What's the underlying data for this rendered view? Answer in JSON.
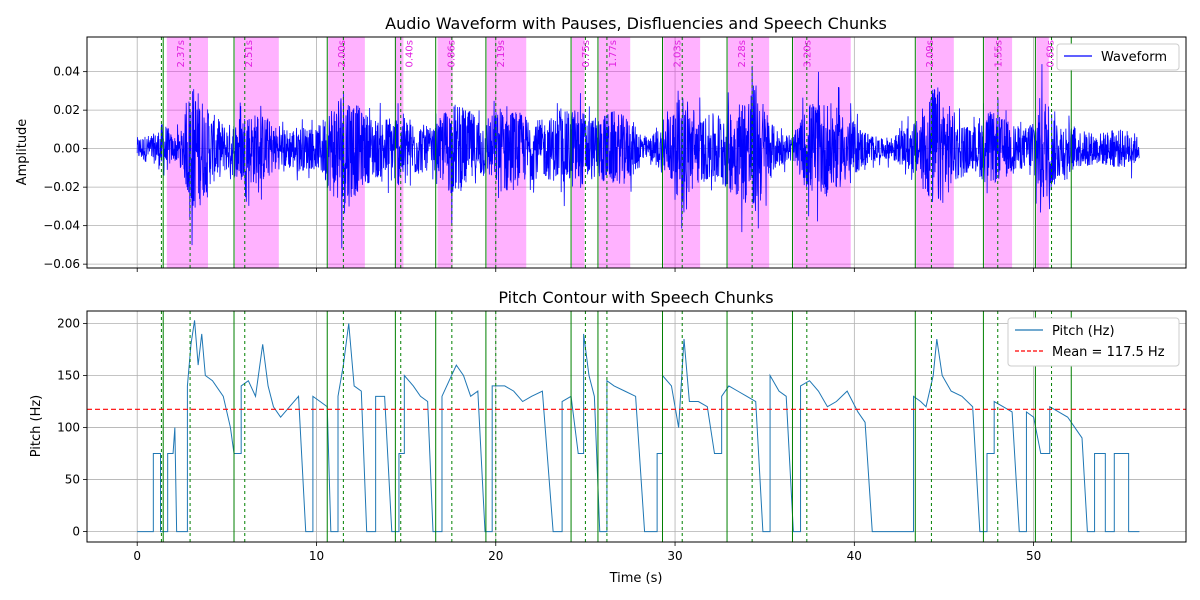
{
  "chart_data": [
    {
      "type": "line",
      "title": "Audio Waveform with Pauses, Disfluencies and Speech Chunks",
      "xlabel": "",
      "ylabel": "Amplitude",
      "xlim": [
        -2.8,
        58.5
      ],
      "ylim": [
        -0.062,
        0.058
      ],
      "yticks": [
        -0.06,
        -0.04,
        -0.02,
        0.0,
        0.02,
        0.04
      ],
      "ytick_labels": [
        "−0.06",
        "−0.04",
        "−0.02",
        "0.00",
        "0.02",
        "0.04"
      ],
      "xticks": [
        0,
        10,
        20,
        30,
        40,
        50
      ],
      "grid": true,
      "legend_position": "upper-right",
      "series": [
        {
          "name": "Waveform",
          "color": "#0000ff",
          "duration": 55.9,
          "envelope": [
            [
              0,
              0.006
            ],
            [
              1.0,
              0.008
            ],
            [
              1.5,
              0.015
            ],
            [
              2.0,
              0.006
            ],
            [
              2.5,
              0.01
            ],
            [
              3.0,
              0.035
            ],
            [
              3.5,
              0.03
            ],
            [
              4.0,
              0.02
            ],
            [
              5.0,
              0.012
            ],
            [
              6.0,
              0.02
            ],
            [
              7.0,
              0.018
            ],
            [
              8.0,
              0.01
            ],
            [
              9.0,
              0.012
            ],
            [
              10.0,
              0.01
            ],
            [
              11.5,
              0.035
            ],
            [
              12.5,
              0.02
            ],
            [
              13.5,
              0.015
            ],
            [
              14.5,
              0.02
            ],
            [
              15.5,
              0.015
            ],
            [
              16.5,
              0.01
            ],
            [
              17.5,
              0.025
            ],
            [
              18.5,
              0.02
            ],
            [
              19.5,
              0.015
            ],
            [
              20.5,
              0.025
            ],
            [
              21.5,
              0.018
            ],
            [
              22.5,
              0.015
            ],
            [
              23.5,
              0.018
            ],
            [
              24.5,
              0.022
            ],
            [
              25.5,
              0.016
            ],
            [
              26.5,
              0.02
            ],
            [
              27.5,
              0.016
            ],
            [
              28.5,
              0.005
            ],
            [
              29.5,
              0.015
            ],
            [
              30.5,
              0.03
            ],
            [
              31.5,
              0.016
            ],
            [
              32.5,
              0.02
            ],
            [
              33.5,
              0.025
            ],
            [
              34.5,
              0.035
            ],
            [
              35.5,
              0.012
            ],
            [
              36.5,
              0.005
            ],
            [
              37.5,
              0.025
            ],
            [
              38.5,
              0.025
            ],
            [
              39.5,
              0.018
            ],
            [
              40.5,
              0.01
            ],
            [
              41.5,
              0.005
            ],
            [
              42.5,
              0.008
            ],
            [
              43.5,
              0.015
            ],
            [
              44.5,
              0.035
            ],
            [
              45.5,
              0.02
            ],
            [
              46.5,
              0.01
            ],
            [
              47.5,
              0.02
            ],
            [
              48.5,
              0.015
            ],
            [
              49.5,
              0.01
            ],
            [
              50.5,
              0.03
            ],
            [
              51.5,
              0.015
            ],
            [
              52.5,
              0.01
            ],
            [
              53.5,
              0.008
            ],
            [
              54.5,
              0.01
            ],
            [
              55.5,
              0.01
            ],
            [
              55.9,
              0.005
            ]
          ]
        }
      ],
      "pause_spans": [
        {
          "start": 1.65,
          "end": 3.95,
          "label": "2.37s"
        },
        {
          "start": 5.45,
          "end": 7.9,
          "label": "2.51s"
        },
        {
          "start": 10.65,
          "end": 12.7,
          "label": "2.00s"
        },
        {
          "start": 14.4,
          "end": 14.85,
          "label": "0.40s"
        },
        {
          "start": 16.75,
          "end": 17.6,
          "label": "0.86s"
        },
        {
          "start": 19.5,
          "end": 21.7,
          "label": "2.19s"
        },
        {
          "start": 24.25,
          "end": 24.95,
          "label": "0.75s"
        },
        {
          "start": 25.75,
          "end": 27.5,
          "label": "1.77s"
        },
        {
          "start": 29.35,
          "end": 31.4,
          "label": "2.03s"
        },
        {
          "start": 32.95,
          "end": 35.25,
          "label": "2.28s"
        },
        {
          "start": 36.6,
          "end": 39.8,
          "label": "3.20s"
        },
        {
          "start": 43.45,
          "end": 45.55,
          "label": "2.09s"
        },
        {
          "start": 47.25,
          "end": 48.8,
          "label": "1.55s"
        },
        {
          "start": 50.15,
          "end": 50.85,
          "label": "0.69s"
        }
      ]
    },
    {
      "type": "line",
      "title": "Pitch Contour with Speech Chunks",
      "xlabel": "Time (s)",
      "ylabel": "Pitch (Hz)",
      "xlim": [
        -2.8,
        58.5
      ],
      "ylim": [
        -10,
        212
      ],
      "yticks": [
        0,
        50,
        100,
        150,
        200
      ],
      "xticks": [
        0,
        10,
        20,
        30,
        40,
        50
      ],
      "grid": true,
      "legend_position": "upper-right",
      "series": [
        {
          "name": "Pitch (Hz)",
          "color": "#1f77b4",
          "values": [
            [
              0,
              0
            ],
            [
              0.9,
              0
            ],
            [
              0.9,
              75
            ],
            [
              1.3,
              75
            ],
            [
              1.3,
              0
            ],
            [
              1.7,
              0
            ],
            [
              1.7,
              75
            ],
            [
              2.0,
              75
            ],
            [
              2.1,
              100
            ],
            [
              2.2,
              0
            ],
            [
              2.8,
              0
            ],
            [
              2.8,
              140
            ],
            [
              3.0,
              180
            ],
            [
              3.2,
              203
            ],
            [
              3.4,
              160
            ],
            [
              3.6,
              190
            ],
            [
              3.8,
              150
            ],
            [
              4.2,
              145
            ],
            [
              4.8,
              130
            ],
            [
              5.2,
              100
            ],
            [
              5.4,
              75
            ],
            [
              5.8,
              75
            ],
            [
              5.8,
              140
            ],
            [
              6.2,
              145
            ],
            [
              6.6,
              130
            ],
            [
              7.0,
              180
            ],
            [
              7.3,
              140
            ],
            [
              7.6,
              120
            ],
            [
              8.0,
              110
            ],
            [
              8.5,
              120
            ],
            [
              9.0,
              130
            ],
            [
              9.4,
              0
            ],
            [
              9.8,
              0
            ],
            [
              9.8,
              130
            ],
            [
              10.2,
              125
            ],
            [
              10.6,
              120
            ],
            [
              10.8,
              0
            ],
            [
              11.2,
              0
            ],
            [
              11.2,
              130
            ],
            [
              11.5,
              160
            ],
            [
              11.8,
              200
            ],
            [
              12.1,
              140
            ],
            [
              12.5,
              135
            ],
            [
              12.8,
              0
            ],
            [
              13.3,
              0
            ],
            [
              13.3,
              130
            ],
            [
              13.8,
              130
            ],
            [
              14.2,
              0
            ],
            [
              14.6,
              0
            ],
            [
              14.6,
              75
            ],
            [
              14.9,
              75
            ],
            [
              14.9,
              150
            ],
            [
              15.4,
              140
            ],
            [
              15.8,
              130
            ],
            [
              16.2,
              125
            ],
            [
              16.5,
              0
            ],
            [
              17.0,
              0
            ],
            [
              17.0,
              130
            ],
            [
              17.4,
              145
            ],
            [
              17.8,
              160
            ],
            [
              18.2,
              150
            ],
            [
              18.6,
              130
            ],
            [
              19.0,
              135
            ],
            [
              19.4,
              0
            ],
            [
              19.8,
              0
            ],
            [
              19.8,
              140
            ],
            [
              20.5,
              140
            ],
            [
              21.0,
              135
            ],
            [
              21.5,
              125
            ],
            [
              22.0,
              130
            ],
            [
              22.6,
              135
            ],
            [
              23.2,
              0
            ],
            [
              23.7,
              0
            ],
            [
              23.7,
              125
            ],
            [
              24.2,
              130
            ],
            [
              24.6,
              75
            ],
            [
              24.9,
              75
            ],
            [
              24.9,
              190
            ],
            [
              25.2,
              150
            ],
            [
              25.5,
              130
            ],
            [
              25.8,
              0
            ],
            [
              26.2,
              0
            ],
            [
              26.2,
              145
            ],
            [
              26.6,
              140
            ],
            [
              27.2,
              135
            ],
            [
              27.8,
              130
            ],
            [
              28.3,
              0
            ],
            [
              29.0,
              0
            ],
            [
              29.0,
              75
            ],
            [
              29.3,
              75
            ],
            [
              29.3,
              150
            ],
            [
              29.8,
              140
            ],
            [
              30.2,
              100
            ],
            [
              30.5,
              185
            ],
            [
              30.8,
              125
            ],
            [
              31.3,
              125
            ],
            [
              31.8,
              120
            ],
            [
              32.2,
              75
            ],
            [
              32.6,
              75
            ],
            [
              32.6,
              130
            ],
            [
              33.0,
              140
            ],
            [
              33.5,
              135
            ],
            [
              34.0,
              130
            ],
            [
              34.5,
              125
            ],
            [
              34.9,
              0
            ],
            [
              35.3,
              0
            ],
            [
              35.3,
              150
            ],
            [
              35.8,
              135
            ],
            [
              36.2,
              130
            ],
            [
              36.6,
              0
            ],
            [
              37.0,
              0
            ],
            [
              37.0,
              140
            ],
            [
              37.5,
              145
            ],
            [
              38.0,
              135
            ],
            [
              38.5,
              120
            ],
            [
              39.0,
              125
            ],
            [
              39.6,
              135
            ],
            [
              40.2,
              115
            ],
            [
              40.6,
              105
            ],
            [
              41.0,
              0
            ],
            [
              43.3,
              0
            ],
            [
              43.3,
              130
            ],
            [
              43.7,
              125
            ],
            [
              44.0,
              120
            ],
            [
              44.4,
              150
            ],
            [
              44.6,
              185
            ],
            [
              44.9,
              150
            ],
            [
              45.4,
              135
            ],
            [
              46.0,
              130
            ],
            [
              46.6,
              120
            ],
            [
              47.0,
              0
            ],
            [
              47.4,
              0
            ],
            [
              47.4,
              75
            ],
            [
              47.8,
              75
            ],
            [
              47.8,
              125
            ],
            [
              48.3,
              120
            ],
            [
              48.8,
              115
            ],
            [
              49.2,
              0
            ],
            [
              49.6,
              0
            ],
            [
              49.6,
              115
            ],
            [
              50.0,
              110
            ],
            [
              50.4,
              75
            ],
            [
              50.9,
              75
            ],
            [
              50.9,
              120
            ],
            [
              51.4,
              115
            ],
            [
              51.9,
              110
            ],
            [
              52.3,
              100
            ],
            [
              52.7,
              90
            ],
            [
              53.0,
              0
            ],
            [
              53.4,
              0
            ],
            [
              53.4,
              75
            ],
            [
              54.0,
              75
            ],
            [
              54.0,
              0
            ],
            [
              54.5,
              0
            ],
            [
              54.5,
              75
            ],
            [
              55.3,
              75
            ],
            [
              55.3,
              0
            ],
            [
              55.9,
              0
            ]
          ]
        },
        {
          "name": "Mean = 117.5 Hz",
          "color": "#ff0000",
          "value": 117.5
        }
      ]
    }
  ],
  "chunk_boundaries": [
    1.45,
    5.4,
    10.6,
    14.4,
    16.65,
    19.45,
    24.2,
    25.7,
    29.3,
    32.9,
    36.55,
    43.4,
    47.2,
    50.1,
    52.1
  ],
  "disfluency_marks": [
    1.35,
    2.95,
    6.0,
    11.5,
    14.7,
    17.55,
    20.0,
    25.0,
    26.2,
    30.4,
    34.3,
    37.35,
    44.3,
    48.0,
    51.0
  ]
}
